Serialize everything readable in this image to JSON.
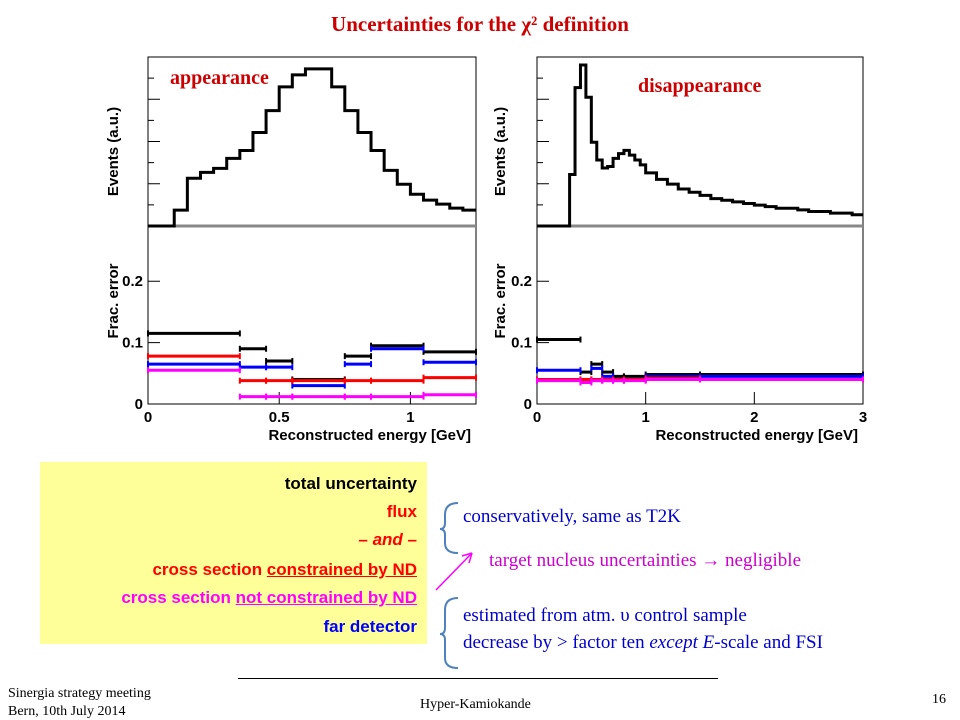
{
  "slide": {
    "title": "Uncertainties for the χ² definition",
    "footer_left_line1": "Sinergia strategy meeting",
    "footer_left_line2": "Bern, 10th July 2014",
    "footer_center": "Hyper-Kamiokande",
    "page_number": "16"
  },
  "legend": {
    "total": "total uncertainty",
    "flux": "flux",
    "and": "– and –",
    "xsec_constrained_prefix": "cross section ",
    "xsec_constrained_suffix": "constrained by ND",
    "xsec_not_constrained_prefix": "cross section ",
    "xsec_not_constrained_suffix": "not constrained by ND",
    "far_detector": "far detector"
  },
  "notes": {
    "flux_note": "conservatively, same as T2K",
    "nucleus_note": "target nucleus uncertainties → negligible",
    "far_note_line1": "estimated from atm. υ control sample",
    "far_note_line2_a": "decrease by > factor ten ",
    "far_note_line2_b": "except E",
    "far_note_line2_c": "-scale and FSI"
  },
  "colors": {
    "total": "#000000",
    "flux": "#ff0000",
    "xsec_constrained": "#ff0000",
    "xsec_not_constrained": "#ff00ff",
    "far_detector": "#0000ff",
    "title": "#cc0000",
    "legend_bg": "#ffff99"
  },
  "chart_data": [
    {
      "type": "line",
      "title": "appearance",
      "panel": "events",
      "ylabel": "Events (a.u.)",
      "xlim": [
        0,
        1.25
      ],
      "x_edges": [
        0,
        0.1,
        0.15,
        0.2,
        0.25,
        0.3,
        0.35,
        0.4,
        0.45,
        0.5,
        0.55,
        0.6,
        0.65,
        0.7,
        0.75,
        0.8,
        0.85,
        0.9,
        0.95,
        1.0,
        1.05,
        1.1,
        1.15,
        1.2,
        1.25
      ],
      "series": [
        {
          "values": [
            0,
            0.08,
            0.24,
            0.27,
            0.29,
            0.34,
            0.38,
            0.47,
            0.58,
            0.7,
            0.76,
            0.79,
            0.79,
            0.7,
            0.58,
            0.47,
            0.38,
            0.28,
            0.21,
            0.16,
            0.13,
            0.11,
            0.09,
            0.08
          ]
        }
      ]
    },
    {
      "type": "line",
      "title": "appearance",
      "panel": "fractional error",
      "xlabel": "Reconstructed energy [GeV]",
      "ylabel": "Frac. error",
      "xlim": [
        0,
        1.25
      ],
      "ylim": [
        0,
        0.29
      ],
      "xticks": [
        "0",
        "0.5",
        "1"
      ],
      "yticks": [
        "0",
        "0.1",
        "0.2"
      ],
      "x_edges": [
        0,
        0.35,
        0.45,
        0.55,
        0.75,
        0.85,
        1.05,
        1.25
      ],
      "series": [
        {
          "name": "total uncertainty",
          "values": [
            0.115,
            0.09,
            0.07,
            0.04,
            0.078,
            0.095,
            0.085
          ]
        },
        {
          "name": "far detector",
          "values": [
            0.065,
            0.06,
            0.06,
            0.03,
            0.065,
            0.09,
            0.068
          ]
        },
        {
          "name": "cross section constrained by ND",
          "values": [
            0.078,
            0.038,
            0.038,
            0.038,
            0.038,
            0.038,
            0.043
          ]
        },
        {
          "name": "cross section not constrained by ND",
          "values": [
            0.055,
            0.012,
            0.012,
            0.012,
            0.012,
            0.012,
            0.015
          ]
        }
      ]
    },
    {
      "type": "line",
      "title": "disappearance",
      "panel": "events",
      "ylabel": "Events (a.u.)",
      "xlim": [
        0,
        3
      ],
      "x_edges": [
        0,
        0.1,
        0.2,
        0.3,
        0.35,
        0.4,
        0.45,
        0.5,
        0.55,
        0.6,
        0.65,
        0.7,
        0.75,
        0.8,
        0.85,
        0.9,
        0.95,
        1.0,
        1.1,
        1.2,
        1.3,
        1.4,
        1.5,
        1.6,
        1.7,
        1.8,
        1.9,
        2.0,
        2.1,
        2.2,
        2.3,
        2.4,
        2.5,
        2.6,
        2.7,
        2.8,
        2.9,
        3.0
      ],
      "series": [
        {
          "values": [
            0,
            0,
            0,
            0.32,
            0.86,
            1.0,
            0.8,
            0.52,
            0.41,
            0.36,
            0.37,
            0.42,
            0.45,
            0.47,
            0.44,
            0.41,
            0.38,
            0.33,
            0.29,
            0.26,
            0.23,
            0.21,
            0.19,
            0.17,
            0.16,
            0.15,
            0.14,
            0.13,
            0.12,
            0.11,
            0.11,
            0.1,
            0.09,
            0.09,
            0.08,
            0.08,
            0.07
          ]
        }
      ]
    },
    {
      "type": "line",
      "title": "disappearance",
      "panel": "fractional error",
      "xlabel": "Reconstructed energy [GeV]",
      "ylabel": "Frac. error",
      "xlim": [
        0,
        3
      ],
      "ylim": [
        0,
        0.29
      ],
      "xticks": [
        "0",
        "1",
        "2",
        "3"
      ],
      "yticks": [
        "0",
        "0.1",
        "0.2"
      ],
      "x_edges": [
        0,
        0.4,
        0.5,
        0.6,
        0.7,
        0.8,
        1.0,
        1.5,
        3.0
      ],
      "series": [
        {
          "name": "total uncertainty",
          "values": [
            0.105,
            0.052,
            0.065,
            0.052,
            0.045,
            0.045,
            0.048,
            0.048
          ]
        },
        {
          "name": "far detector",
          "values": [
            0.055,
            0.038,
            0.058,
            0.045,
            0.04,
            0.04,
            0.045,
            0.045
          ]
        },
        {
          "name": "cross section constrained by ND",
          "values": [
            0.04,
            0.04,
            0.04,
            0.04,
            0.04,
            0.04,
            0.042,
            0.04
          ]
        },
        {
          "name": "cross section not constrained by ND",
          "values": [
            0.038,
            0.035,
            0.038,
            0.038,
            0.038,
            0.038,
            0.04,
            0.04
          ]
        }
      ]
    }
  ]
}
